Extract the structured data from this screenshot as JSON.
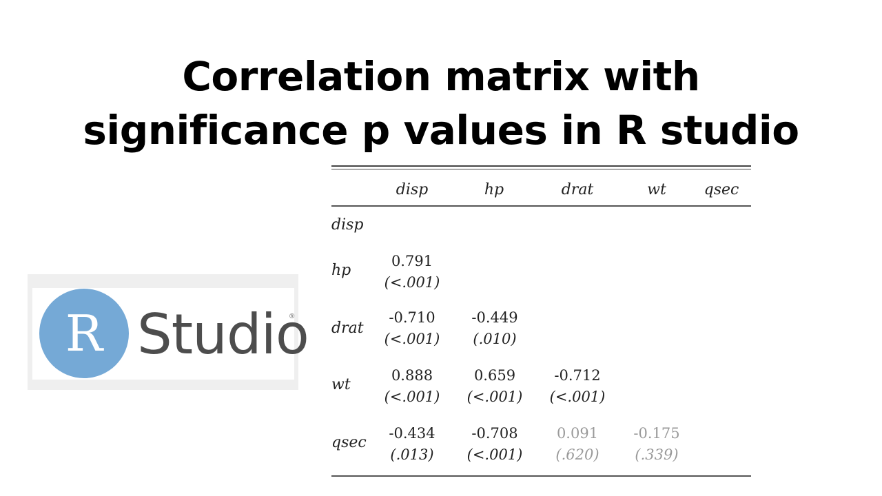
{
  "title": {
    "line1": "Correlation matrix with",
    "line2": "significance p values  in R studio"
  },
  "logo": {
    "letter": "R",
    "word": "Studio",
    "reg": "®"
  },
  "table": {
    "columns": [
      "disp",
      "hp",
      "drat",
      "wt",
      "qsec"
    ],
    "rows": [
      {
        "label": "disp",
        "cells": []
      },
      {
        "label": "hp",
        "cells": [
          {
            "r": "0.791",
            "p": "(<.001)"
          }
        ]
      },
      {
        "label": "drat",
        "cells": [
          {
            "r": "-0.710",
            "p": "(<.001)"
          },
          {
            "r": "-0.449",
            "p": "(.010)"
          }
        ]
      },
      {
        "label": "wt",
        "cells": [
          {
            "r": "0.888",
            "p": "(<.001)"
          },
          {
            "r": "0.659",
            "p": "(<.001)"
          },
          {
            "r": "-0.712",
            "p": "(<.001)"
          }
        ]
      },
      {
        "label": "qsec",
        "cells": [
          {
            "r": "-0.434",
            "p": "(.013)"
          },
          {
            "r": "-0.708",
            "p": "(<.001)"
          },
          {
            "r": "0.091",
            "p": "(.620)",
            "faded": true
          },
          {
            "r": "-0.175",
            "p": "(.339)",
            "faded": true
          }
        ]
      }
    ]
  }
}
